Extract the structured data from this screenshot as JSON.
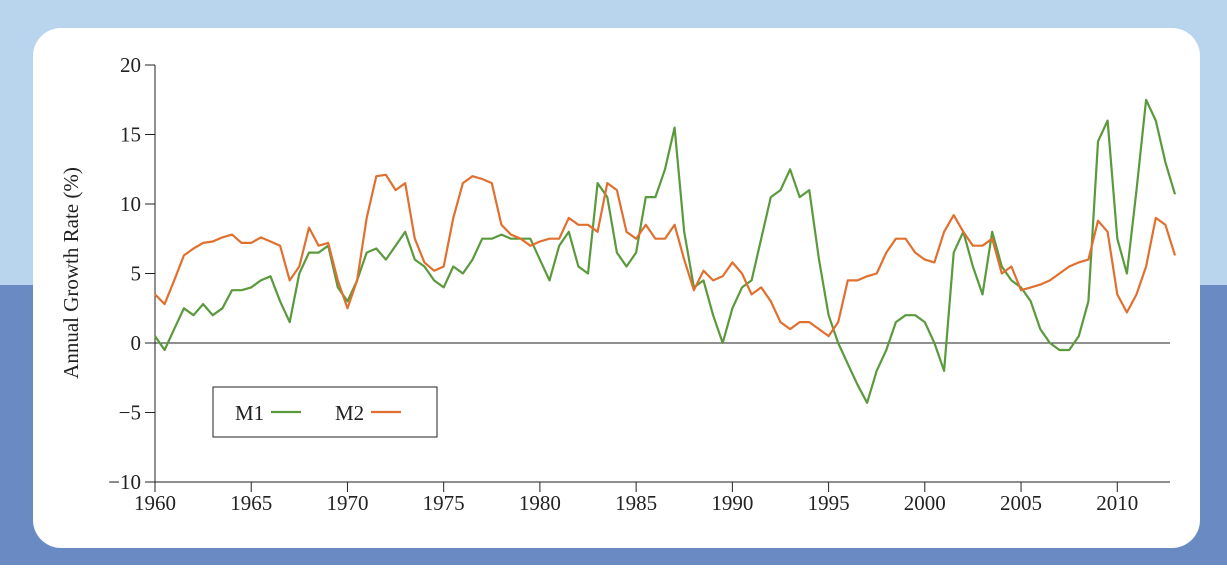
{
  "chart_data": {
    "type": "line",
    "ylabel": "Annual Growth Rate (%)",
    "x": [
      1960,
      1960.5,
      1961,
      1961.5,
      1962,
      1962.5,
      1963,
      1963.5,
      1964,
      1964.5,
      1965,
      1965.5,
      1966,
      1966.5,
      1967,
      1967.5,
      1968,
      1968.5,
      1969,
      1969.5,
      1970,
      1970.5,
      1971,
      1971.5,
      1972,
      1972.5,
      1973,
      1973.5,
      1974,
      1974.5,
      1975,
      1975.5,
      1976,
      1976.5,
      1977,
      1977.5,
      1978,
      1978.5,
      1979,
      1979.5,
      1980,
      1980.5,
      1981,
      1981.5,
      1982,
      1982.5,
      1983,
      1983.5,
      1984,
      1984.5,
      1985,
      1985.5,
      1986,
      1986.5,
      1987,
      1987.5,
      1988,
      1988.5,
      1989,
      1989.5,
      1990,
      1990.5,
      1991,
      1991.5,
      1992,
      1992.5,
      1993,
      1993.5,
      1994,
      1994.5,
      1995,
      1995.5,
      1996,
      1996.5,
      1997,
      1997.5,
      1998,
      1998.5,
      1999,
      1999.5,
      2000,
      2000.5,
      2001,
      2001.5,
      2002,
      2002.5,
      2003,
      2003.5,
      2004,
      2004.5,
      2005,
      2005.5,
      2006,
      2006.5,
      2007,
      2007.5,
      2008,
      2008.5,
      2009,
      2009.5,
      2010,
      2010.5,
      2011,
      2011.5,
      2012,
      2012.5,
      2013
    ],
    "series": [
      {
        "name": "M1",
        "color": "#5a9a3c",
        "values": [
          0.5,
          -0.5,
          1.0,
          2.5,
          2.0,
          2.8,
          2.0,
          2.5,
          3.8,
          3.8,
          4.0,
          4.5,
          4.8,
          3.0,
          1.5,
          5.0,
          6.5,
          6.5,
          7.0,
          4.0,
          3.0,
          4.5,
          6.5,
          6.8,
          6.0,
          7.0,
          8.0,
          6.0,
          5.5,
          4.5,
          4.0,
          5.5,
          5.0,
          6.0,
          7.5,
          7.5,
          7.8,
          7.5,
          7.5,
          7.5,
          6.0,
          4.5,
          7.0,
          8.0,
          5.5,
          5.0,
          11.5,
          10.5,
          6.5,
          5.5,
          6.5,
          10.5,
          10.5,
          12.5,
          15.5,
          8.0,
          4.0,
          4.5,
          2.0,
          0.0,
          2.5,
          4.0,
          4.5,
          7.5,
          10.5,
          11.0,
          12.5,
          10.5,
          11.0,
          6.0,
          2.0,
          0.0,
          -1.5,
          -3.0,
          -4.3,
          -2.0,
          -0.5,
          1.5,
          2.0,
          2.0,
          1.5,
          0.0,
          -2.0,
          6.5,
          8.0,
          5.5,
          3.5,
          8.0,
          5.5,
          4.5,
          4.0,
          3.0,
          1.0,
          0.0,
          -0.5,
          -0.5,
          0.5,
          3.0,
          14.5,
          16.0,
          7.5,
          5.0,
          11.0,
          17.5,
          16.0,
          13.0,
          10.7
        ]
      },
      {
        "name": "M2",
        "color": "#e07030",
        "values": [
          3.5,
          2.8,
          4.5,
          6.3,
          6.8,
          7.2,
          7.3,
          7.6,
          7.8,
          7.2,
          7.2,
          7.6,
          7.3,
          7.0,
          4.5,
          5.5,
          8.3,
          7.0,
          7.2,
          4.5,
          2.5,
          4.5,
          9.0,
          12.0,
          12.1,
          11.0,
          11.5,
          7.5,
          5.8,
          5.2,
          5.5,
          9.0,
          11.5,
          12.0,
          11.8,
          11.5,
          8.5,
          7.8,
          7.5,
          7.0,
          7.3,
          7.5,
          7.5,
          9.0,
          8.5,
          8.5,
          8.0,
          11.5,
          11.0,
          8.0,
          7.5,
          8.5,
          7.5,
          7.5,
          8.5,
          6.0,
          3.8,
          5.2,
          4.5,
          4.8,
          5.8,
          5.0,
          3.5,
          4.0,
          3.0,
          1.5,
          1.0,
          1.5,
          1.5,
          1.0,
          0.5,
          1.5,
          4.5,
          4.5,
          4.8,
          5.0,
          6.5,
          7.5,
          7.5,
          6.5,
          6.0,
          5.8,
          8.0,
          9.2,
          8.0,
          7.0,
          7.0,
          7.5,
          5.0,
          5.5,
          3.8,
          4.0,
          4.2,
          4.5,
          5.0,
          5.5,
          5.8,
          6.0,
          8.8,
          8.0,
          3.5,
          2.2,
          3.5,
          5.5,
          9.0,
          8.5,
          6.3
        ]
      }
    ],
    "xlim": [
      1960,
      2013
    ],
    "xticks": [
      1960,
      1965,
      1970,
      1975,
      1980,
      1985,
      1990,
      1995,
      2000,
      2005,
      2010
    ],
    "ylim": [
      -10,
      20
    ],
    "yticks": [
      {
        "value": -10,
        "label": "−10"
      },
      {
        "value": -5,
        "label": "−5"
      },
      0,
      5,
      10,
      15,
      20
    ],
    "legend": "lower left"
  }
}
